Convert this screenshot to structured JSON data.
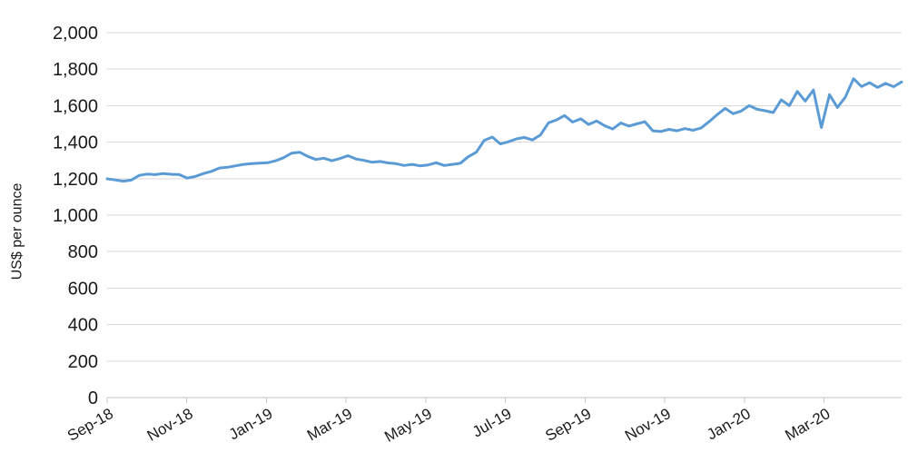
{
  "chart": {
    "title": "",
    "y_axis": {
      "title": "US$ per ounce",
      "tick_labels": [
        "0",
        "200",
        "400",
        "600",
        "800",
        "1,000",
        "1,200",
        "1,400",
        "1,600",
        "1,800",
        "2,000"
      ]
    },
    "x_axis": {
      "tick_labels": [
        "Sep-18",
        "Nov-18",
        "Jan-19",
        "Mar-19",
        "May-19",
        "Jul-19",
        "Sep-19",
        "Nov-19",
        "Jan-20",
        "Mar-20"
      ]
    },
    "colors": {
      "line": "#5B9BD5",
      "gridline": "#d9d9d9",
      "axis": "#c6c6c6",
      "text": "#1a1a1a"
    }
  },
  "chart_data": {
    "type": "line",
    "title": "",
    "xlabel": "",
    "ylabel": "US$ per ounce",
    "ylim": [
      0,
      2000
    ],
    "y_tick_step": 200,
    "grid": true,
    "legend": false,
    "x_tick_labels": [
      "Sep-18",
      "Nov-18",
      "Jan-19",
      "Mar-19",
      "May-19",
      "Jul-19",
      "Sep-19",
      "Nov-19",
      "Jan-20",
      "Mar-20"
    ],
    "values": [
      1199,
      1193,
      1186,
      1192,
      1218,
      1225,
      1222,
      1228,
      1224,
      1222,
      1203,
      1212,
      1228,
      1240,
      1258,
      1262,
      1270,
      1278,
      1282,
      1285,
      1287,
      1298,
      1315,
      1340,
      1345,
      1322,
      1305,
      1312,
      1298,
      1310,
      1326,
      1308,
      1300,
      1290,
      1294,
      1286,
      1282,
      1272,
      1278,
      1270,
      1275,
      1287,
      1272,
      1278,
      1284,
      1320,
      1345,
      1410,
      1428,
      1390,
      1402,
      1418,
      1426,
      1412,
      1440,
      1506,
      1522,
      1546,
      1510,
      1528,
      1497,
      1516,
      1490,
      1472,
      1505,
      1488,
      1500,
      1512,
      1462,
      1458,
      1470,
      1462,
      1474,
      1465,
      1477,
      1512,
      1550,
      1585,
      1556,
      1570,
      1600,
      1580,
      1572,
      1562,
      1632,
      1600,
      1678,
      1625,
      1686,
      1480,
      1660,
      1590,
      1648,
      1748,
      1705,
      1726,
      1700,
      1722,
      1704,
      1730
    ]
  }
}
